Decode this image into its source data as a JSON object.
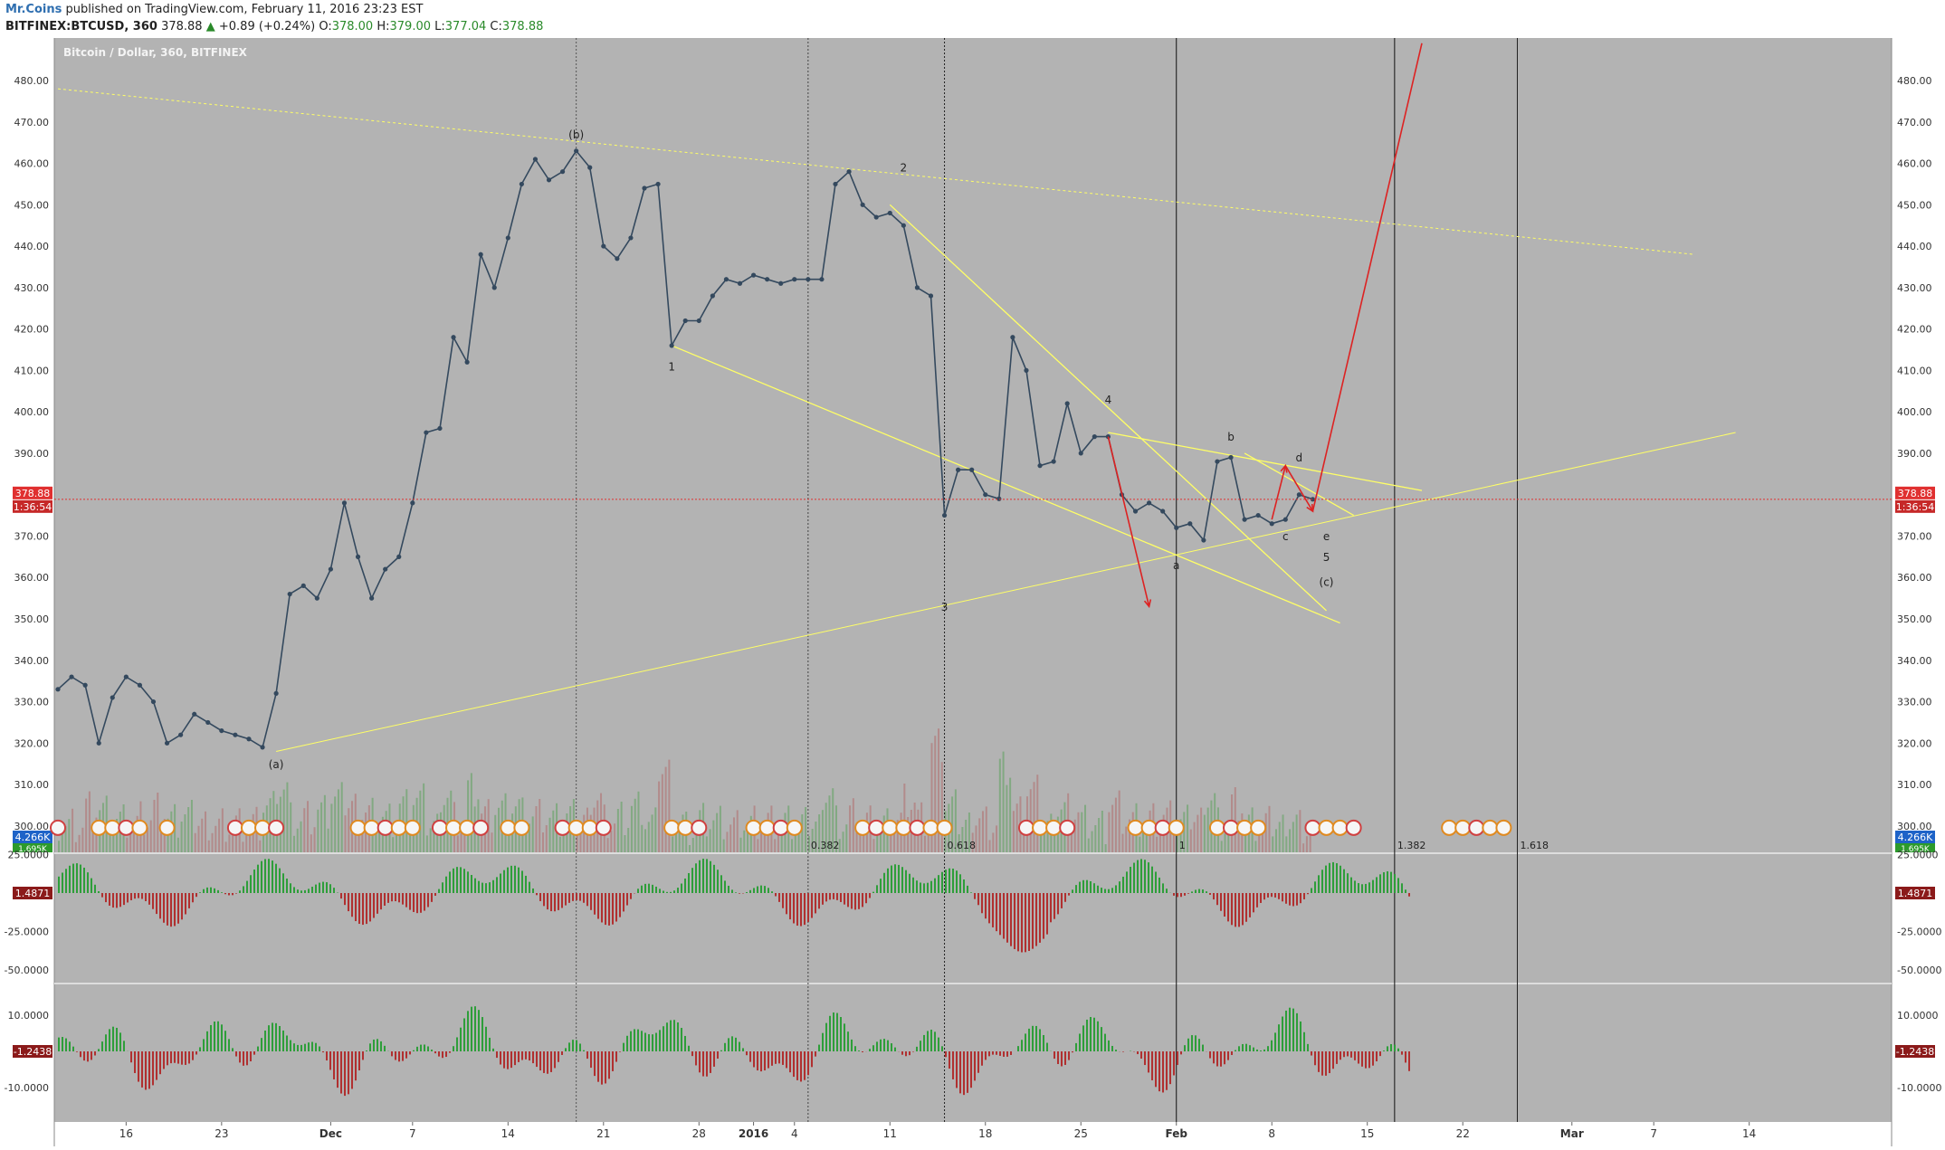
{
  "header": {
    "author": "Mr.Coins",
    "published_text": "published on TradingView.com, February 11, 2016 23:23 EST",
    "symbol": "BITFINEX:BTCUSD, 360",
    "last": "378.88",
    "change": "+0.89 (+0.24%)",
    "o_label": "O:",
    "o_value": "378.00",
    "h_label": "H:",
    "h_value": "379.00",
    "l_label": "L:",
    "l_value": "377.04",
    "c_label": "C:",
    "c_value": "378.88"
  },
  "chart_title": "Bitcoin / Dollar, 360, BITFINEX",
  "price_axis": {
    "ticks": [
      "480.00",
      "470.00",
      "460.00",
      "450.00",
      "440.00",
      "430.00",
      "420.00",
      "410.00",
      "400.00",
      "390.00",
      "380.00",
      "370.00",
      "360.00",
      "350.00",
      "340.00",
      "330.00",
      "320.00",
      "310.00",
      "300.00"
    ],
    "last_price_label": "378.88",
    "countdown_label": "1:36:54",
    "volume_label": "4.266K",
    "volume_ma_label": "1.695K"
  },
  "osc1_axis": {
    "ticks": [
      "25.0000",
      "-25.0000",
      "-50.0000"
    ],
    "value_label": "1.4871"
  },
  "osc2_axis": {
    "ticks": [
      "10.0000",
      "-10.0000"
    ],
    "value_label": "-1.2438"
  },
  "time_axis": {
    "ticks": [
      "16",
      "23",
      "Dec",
      "7",
      "14",
      "21",
      "28",
      "2016",
      "4",
      "11",
      "18",
      "25",
      "Feb",
      "8",
      "15",
      "22",
      "Mar",
      "7",
      "14"
    ]
  },
  "fib_labels": [
    "0.382",
    "0.618",
    "1",
    "1.382",
    "1.618"
  ],
  "wave_labels": [
    "(a)",
    "(b)",
    "1",
    "2",
    "3",
    "4",
    "a",
    "b",
    "c",
    "d",
    "e",
    "5",
    "(c)"
  ],
  "colors": {
    "background": "#b3b3b3",
    "price_line": "#34495e",
    "trendline": "#ffff66",
    "arrow": "#dd2222",
    "last_price": "#e03030",
    "volume_up": "#5aa05a",
    "volume_down": "#b06a6a",
    "osc_up": "#2e9e3a",
    "osc_down": "#b03030"
  },
  "chart_data": {
    "type": "line",
    "title": "Bitcoin / Dollar, 360, BITFINEX",
    "xlabel": "",
    "ylabel": "",
    "ylim": [
      300,
      485
    ],
    "x_range": [
      "2015-11-11",
      "2016-03-19"
    ],
    "series": [
      {
        "name": "BTCUSD",
        "points": [
          [
            "2015-11-11",
            333
          ],
          [
            "2015-11-12",
            336
          ],
          [
            "2015-11-13",
            334
          ],
          [
            "2015-11-14",
            320
          ],
          [
            "2015-11-15",
            331
          ],
          [
            "2015-11-16",
            336
          ],
          [
            "2015-11-17",
            334
          ],
          [
            "2015-11-18",
            330
          ],
          [
            "2015-11-19",
            320
          ],
          [
            "2015-11-20",
            322
          ],
          [
            "2015-11-21",
            327
          ],
          [
            "2015-11-22",
            325
          ],
          [
            "2015-11-23",
            323
          ],
          [
            "2015-11-24",
            322
          ],
          [
            "2015-11-25",
            321
          ],
          [
            "2015-11-26",
            319
          ],
          [
            "2015-11-27",
            332
          ],
          [
            "2015-11-28",
            356
          ],
          [
            "2015-11-29",
            358
          ],
          [
            "2015-11-30",
            355
          ],
          [
            "2015-12-01",
            362
          ],
          [
            "2015-12-02",
            378
          ],
          [
            "2015-12-03",
            365
          ],
          [
            "2015-12-04",
            355
          ],
          [
            "2015-12-05",
            362
          ],
          [
            "2015-12-06",
            365
          ],
          [
            "2015-12-07",
            378
          ],
          [
            "2015-12-08",
            395
          ],
          [
            "2015-12-09",
            396
          ],
          [
            "2015-12-10",
            418
          ],
          [
            "2015-12-11",
            412
          ],
          [
            "2015-12-12",
            438
          ],
          [
            "2015-12-13",
            430
          ],
          [
            "2015-12-14",
            442
          ],
          [
            "2015-12-15",
            455
          ],
          [
            "2015-12-16",
            461
          ],
          [
            "2015-12-17",
            456
          ],
          [
            "2015-12-18",
            458
          ],
          [
            "2015-12-19",
            463
          ],
          [
            "2015-12-20",
            459
          ],
          [
            "2015-12-21",
            440
          ],
          [
            "2015-12-22",
            437
          ],
          [
            "2015-12-23",
            442
          ],
          [
            "2015-12-24",
            454
          ],
          [
            "2015-12-25",
            455
          ],
          [
            "2015-12-26",
            416
          ],
          [
            "2015-12-27",
            422
          ],
          [
            "2015-12-28",
            422
          ],
          [
            "2015-12-29",
            428
          ],
          [
            "2015-12-30",
            432
          ],
          [
            "2015-12-31",
            431
          ],
          [
            "2016-01-01",
            433
          ],
          [
            "2016-01-02",
            432
          ],
          [
            "2016-01-03",
            431
          ],
          [
            "2016-01-04",
            432
          ],
          [
            "2016-01-05",
            432
          ],
          [
            "2016-01-06",
            432
          ],
          [
            "2016-01-07",
            455
          ],
          [
            "2016-01-08",
            458
          ],
          [
            "2016-01-09",
            450
          ],
          [
            "2016-01-10",
            447
          ],
          [
            "2016-01-11",
            448
          ],
          [
            "2016-01-12",
            445
          ],
          [
            "2016-01-13",
            430
          ],
          [
            "2016-01-14",
            428
          ],
          [
            "2016-01-15",
            375
          ],
          [
            "2016-01-16",
            386
          ],
          [
            "2016-01-17",
            386
          ],
          [
            "2016-01-18",
            380
          ],
          [
            "2016-01-19",
            379
          ],
          [
            "2016-01-20",
            418
          ],
          [
            "2016-01-21",
            410
          ],
          [
            "2016-01-22",
            387
          ],
          [
            "2016-01-23",
            388
          ],
          [
            "2016-01-24",
            402
          ],
          [
            "2016-01-25",
            390
          ],
          [
            "2016-01-26",
            394
          ],
          [
            "2016-01-27",
            394
          ],
          [
            "2016-01-28",
            380
          ],
          [
            "2016-01-29",
            376
          ],
          [
            "2016-01-30",
            378
          ],
          [
            "2016-01-31",
            376
          ],
          [
            "2016-02-01",
            372
          ],
          [
            "2016-02-02",
            373
          ],
          [
            "2016-02-03",
            369
          ],
          [
            "2016-02-04",
            388
          ],
          [
            "2016-02-05",
            389
          ],
          [
            "2016-02-06",
            374
          ],
          [
            "2016-02-07",
            375
          ],
          [
            "2016-02-08",
            373
          ],
          [
            "2016-02-09",
            374
          ],
          [
            "2016-02-10",
            380
          ],
          [
            "2016-02-11",
            378.88
          ]
        ]
      }
    ]
  }
}
